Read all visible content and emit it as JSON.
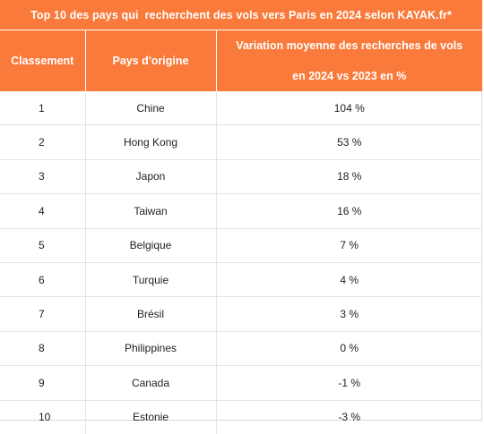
{
  "title": "Top 10 des pays qui  recherchent des vols vers Paris en 2024 selon KAYAK.fr*",
  "headers": {
    "rank": "Classement",
    "country": "Pays d'origine",
    "variation_line1": "Variation moyenne des recherches de vols",
    "variation_line2": "en 2024 vs 2023 en %"
  },
  "rows": [
    {
      "rank": "1",
      "country": "Chine",
      "variation": "104 %"
    },
    {
      "rank": "2",
      "country": "Hong Kong",
      "variation": "53 %"
    },
    {
      "rank": "3",
      "country": "Japon",
      "variation": "18 %"
    },
    {
      "rank": "4",
      "country": "Taiwan",
      "variation": "16 %"
    },
    {
      "rank": "5",
      "country": "Belgique",
      "variation": "7 %"
    },
    {
      "rank": "6",
      "country": "Turquie",
      "variation": "4 %"
    },
    {
      "rank": "7",
      "country": "Brésil",
      "variation": "3 %"
    },
    {
      "rank": "8",
      "country": "Philippines",
      "variation": "0 %"
    },
    {
      "rank": "9",
      "country": "Canada",
      "variation": "-1 %"
    },
    {
      "rank": "10",
      "country": "Estonie",
      "variation": "-3 %"
    }
  ],
  "colors": {
    "header_bg": "#f97a3a",
    "header_text": "#ffffff"
  }
}
